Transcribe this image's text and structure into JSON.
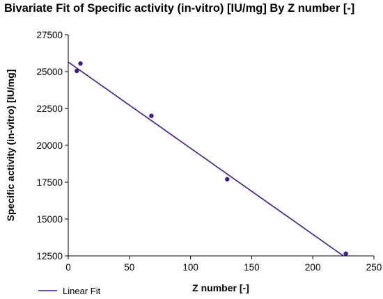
{
  "chart_data": {
    "type": "scatter",
    "title": "Bivariate Fit of Specific activity (in-vitro) [IU/mg] By Z number [-]",
    "xlabel": "Z number [-]",
    "ylabel": "Specific activity (in-vitro) [IU/mg]",
    "xlim": [
      0,
      250
    ],
    "ylim": [
      12500,
      27500
    ],
    "x_ticks": [
      "0",
      "50",
      "100",
      "150",
      "200",
      "250"
    ],
    "y_ticks": [
      "12500",
      "15000",
      "17500",
      "20000",
      "22500",
      "25000",
      "27500"
    ],
    "grid": false,
    "points": [
      {
        "x": 7,
        "y": 25050
      },
      {
        "x": 10,
        "y": 25550
      },
      {
        "x": 68,
        "y": 22000
      },
      {
        "x": 130,
        "y": 17700
      },
      {
        "x": 227,
        "y": 12650
      }
    ],
    "fit_line": {
      "name": "Linear Fit",
      "x": [
        0,
        225
      ],
      "y": [
        25650,
        12500
      ]
    },
    "legend": {
      "position": "bottom-left",
      "entries": [
        "Linear Fit"
      ]
    },
    "colors": {
      "series": "#3d1a8f",
      "axis": "#000000"
    }
  }
}
